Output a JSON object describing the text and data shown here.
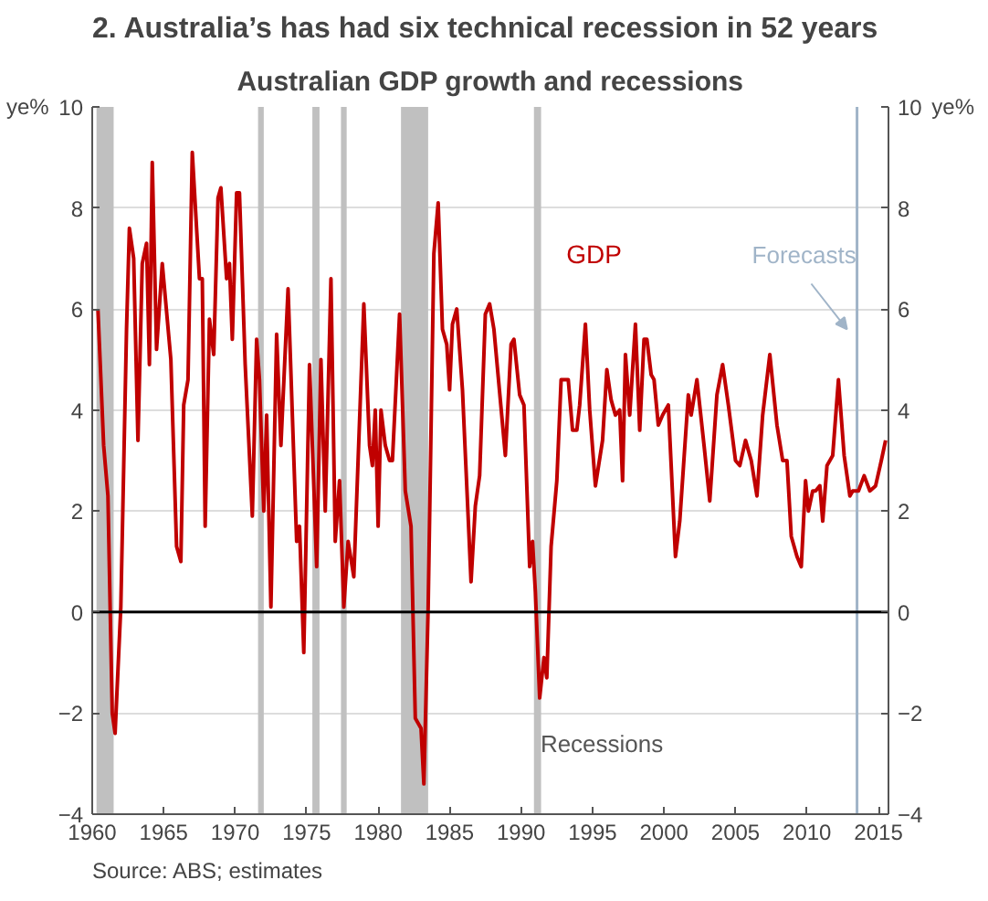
{
  "chart_data": {
    "type": "line",
    "title": "2. Australia’s has had six technical recession in 52 years",
    "subtitle": "Australian GDP growth and recessions",
    "ylabel": "ye%",
    "y2label": "ye%",
    "xlim": [
      1960,
      2015.7
    ],
    "xticks": [
      1960,
      1965,
      1970,
      1975,
      1980,
      1985,
      1990,
      1995,
      2000,
      2005,
      2010,
      2015
    ],
    "ylim": [
      -4,
      10
    ],
    "yticks": [
      -4,
      -2,
      0,
      2,
      4,
      6,
      8,
      10
    ],
    "y2lim": [
      -4,
      10
    ],
    "y2ticks": [
      -4,
      -2,
      0,
      2,
      4,
      6,
      8,
      10
    ],
    "grid": "y",
    "legend": false,
    "series": [
      {
        "name": "GDP",
        "color": "#c00000",
        "x": [
          1960.4,
          1960.8,
          1961.1,
          1961.4,
          1961.6,
          1962.0,
          1962.4,
          1962.6,
          1962.9,
          1963.2,
          1963.5,
          1963.8,
          1964.0,
          1964.2,
          1964.5,
          1964.9,
          1965.5,
          1965.9,
          1966.2,
          1966.4,
          1966.7,
          1967.0,
          1967.5,
          1967.7,
          1967.9,
          1968.2,
          1968.5,
          1968.8,
          1969.0,
          1969.4,
          1969.6,
          1969.8,
          1970.1,
          1970.3,
          1970.7,
          1971.2,
          1971.5,
          1971.7,
          1972.0,
          1972.2,
          1972.5,
          1972.9,
          1973.2,
          1973.7,
          1974.3,
          1974.5,
          1974.8,
          1975.2,
          1975.7,
          1976.0,
          1976.3,
          1976.7,
          1977.0,
          1977.3,
          1977.6,
          1977.9,
          1978.3,
          1979.0,
          1979.4,
          1979.6,
          1979.8,
          1980.0,
          1980.2,
          1980.5,
          1980.8,
          1981.0,
          1981.5,
          1981.9,
          1982.3,
          1982.6,
          1983.0,
          1983.2,
          1983.5,
          1983.9,
          1984.2,
          1984.5,
          1984.8,
          1985.0,
          1985.2,
          1985.5,
          1985.9,
          1986.5,
          1986.8,
          1987.1,
          1987.5,
          1987.8,
          1988.1,
          1988.9,
          1989.3,
          1989.5,
          1989.9,
          1990.2,
          1990.6,
          1990.8,
          1991.0,
          1991.3,
          1991.6,
          1991.8,
          1992.1,
          1992.5,
          1992.8,
          1993.1,
          1993.3,
          1993.6,
          1993.9,
          1994.1,
          1994.5,
          1994.8,
          1995.2,
          1995.7,
          1996.0,
          1996.3,
          1996.6,
          1996.9,
          1997.1,
          1997.3,
          1997.6,
          1998.0,
          1998.3,
          1998.6,
          1998.8,
          1999.1,
          1999.3,
          1999.6,
          1999.9,
          2000.3,
          2000.8,
          2001.1,
          2001.7,
          2001.9,
          2002.3,
          2002.8,
          2003.2,
          2003.7,
          2004.1,
          2004.5,
          2005.0,
          2005.3,
          2005.7,
          2006.1,
          2006.5,
          2006.9,
          2007.4,
          2007.9,
          2008.3,
          2008.6,
          2008.9,
          2009.3,
          2009.6,
          2009.9,
          2010.1,
          2010.4,
          2010.6,
          2010.9,
          2011.1,
          2011.4,
          2011.8,
          2012.2,
          2012.6,
          2013.0,
          2013.2,
          2013.6,
          2014.0,
          2014.4,
          2014.8,
          2015.2,
          2015.5
        ],
        "values": [
          6.0,
          3.3,
          2.3,
          -2.0,
          -2.4,
          0.1,
          5.6,
          7.6,
          7.0,
          3.4,
          6.9,
          7.3,
          4.9,
          8.9,
          5.2,
          6.9,
          5.0,
          1.3,
          1.0,
          4.1,
          4.6,
          9.1,
          6.6,
          6.6,
          1.7,
          5.8,
          5.1,
          8.2,
          8.4,
          6.6,
          6.9,
          5.4,
          8.3,
          8.3,
          4.9,
          1.9,
          5.4,
          4.6,
          2.0,
          3.9,
          0.1,
          5.5,
          3.3,
          6.4,
          1.4,
          1.7,
          -0.8,
          4.9,
          0.9,
          5.0,
          2.0,
          6.6,
          1.4,
          2.6,
          0.1,
          1.4,
          0.7,
          6.1,
          3.3,
          2.9,
          4.0,
          1.7,
          4.0,
          3.3,
          3.0,
          3.0,
          5.9,
          2.4,
          1.7,
          -2.1,
          -2.3,
          -3.4,
          0.1,
          7.1,
          8.1,
          5.6,
          5.3,
          4.4,
          5.7,
          6.0,
          4.4,
          0.6,
          2.1,
          2.7,
          5.9,
          6.1,
          5.6,
          3.1,
          5.3,
          5.4,
          4.3,
          4.1,
          0.9,
          1.4,
          0.4,
          -1.7,
          -0.9,
          -1.3,
          1.3,
          2.6,
          4.6,
          4.6,
          4.6,
          3.6,
          3.6,
          4.1,
          5.7,
          4.0,
          2.5,
          3.4,
          4.8,
          4.2,
          3.9,
          4.0,
          2.6,
          5.1,
          3.9,
          5.7,
          3.6,
          5.4,
          5.4,
          4.7,
          4.6,
          3.7,
          3.9,
          4.1,
          1.1,
          1.8,
          4.3,
          3.9,
          4.6,
          3.3,
          2.2,
          4.3,
          4.9,
          4.1,
          3.0,
          2.9,
          3.4,
          3.0,
          2.3,
          3.9,
          5.1,
          3.7,
          3.0,
          3.0,
          1.5,
          1.1,
          0.9,
          2.6,
          2.0,
          2.4,
          2.4,
          2.5,
          1.8,
          2.9,
          3.1,
          4.6,
          3.1,
          2.3,
          2.4,
          2.4,
          2.7,
          2.4,
          2.5,
          3.0,
          3.4
        ]
      }
    ],
    "bands": [
      {
        "axis": "x",
        "from": 1960.3,
        "to": 1961.5,
        "color": "#c0c0c0"
      },
      {
        "axis": "x",
        "from": 1971.6,
        "to": 1972.0,
        "color": "#c0c0c0"
      },
      {
        "axis": "x",
        "from": 1975.4,
        "to": 1975.9,
        "color": "#c0c0c0"
      },
      {
        "axis": "x",
        "from": 1977.4,
        "to": 1977.8,
        "color": "#c0c0c0"
      },
      {
        "axis": "x",
        "from": 1981.6,
        "to": 1983.5,
        "color": "#c0c0c0"
      },
      {
        "axis": "x",
        "from": 1990.9,
        "to": 1991.4,
        "color": "#c0c0c0"
      }
    ],
    "ref_lines": [
      {
        "axis": "y",
        "value": 0,
        "color": "#000000"
      },
      {
        "axis": "x",
        "value": 2013.5,
        "label": "Forecasts",
        "color": "#a0b4c8"
      }
    ],
    "annotations": [
      "Recessions",
      "Source: ABS; estimates"
    ]
  }
}
